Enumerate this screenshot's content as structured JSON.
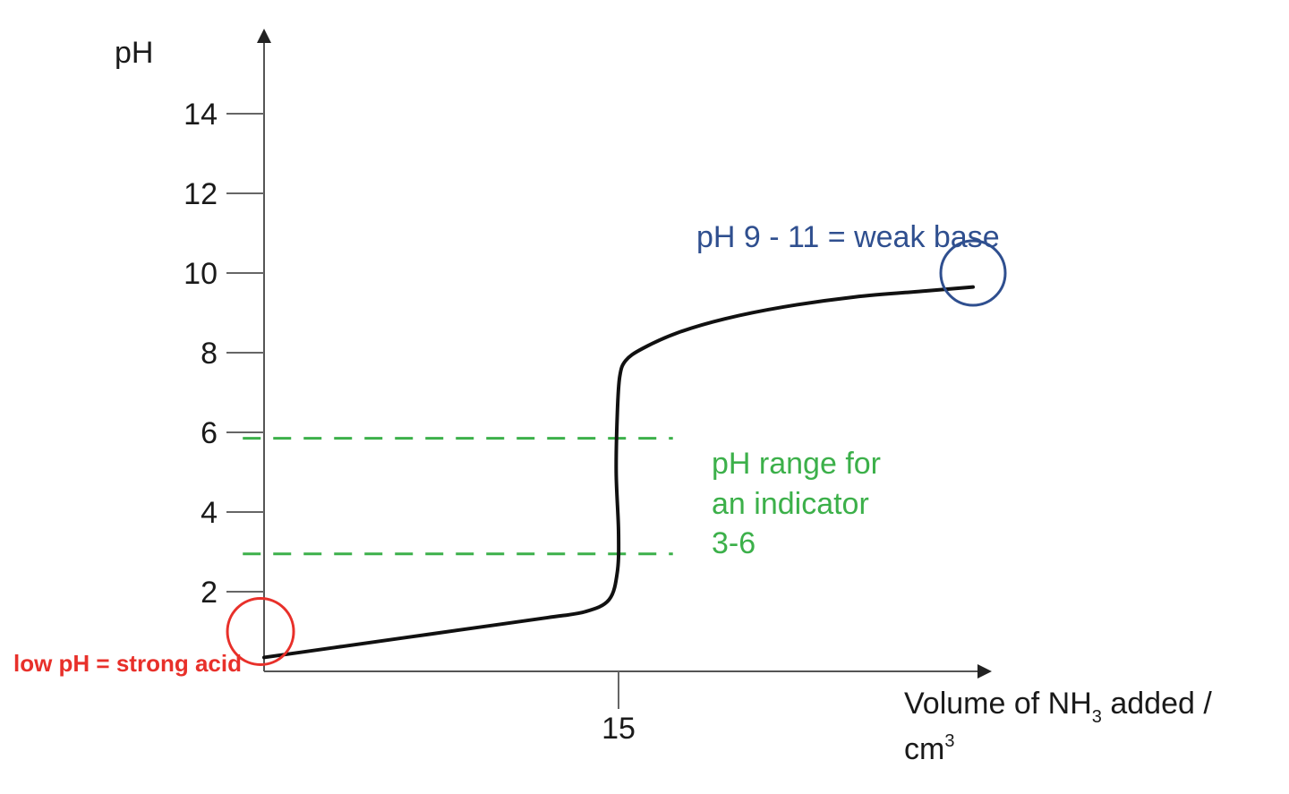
{
  "chart_data": {
    "type": "line",
    "title": "",
    "ylabel": "pH",
    "xlabel_parts": {
      "main": "Volume of NH",
      "sub": "3",
      "rest": " added /",
      "unit_main": "cm",
      "unit_sup": "3"
    },
    "y_ticks": [
      {
        "value": 2,
        "label": "2"
      },
      {
        "value": 4,
        "label": "4"
      },
      {
        "value": 6,
        "label": "6"
      },
      {
        "value": 8,
        "label": "8"
      },
      {
        "value": 10,
        "label": "10"
      },
      {
        "value": 12,
        "label": "12"
      },
      {
        "value": 14,
        "label": "14"
      }
    ],
    "x_ticks": [
      {
        "value": 15,
        "label": "15"
      }
    ],
    "xlim": [
      0,
      31
    ],
    "ylim": [
      0,
      15.2
    ],
    "grid": false,
    "curve": {
      "color": "#111111",
      "x": [
        0,
        3,
        6,
        9,
        12,
        13.6,
        14.6,
        14.95,
        15.0,
        14.9,
        14.95,
        15.05,
        15.3,
        16,
        17.5,
        19.5,
        22,
        25,
        28,
        30
      ],
      "y": [
        0.35,
        0.6,
        0.85,
        1.1,
        1.35,
        1.5,
        1.8,
        2.5,
        3.5,
        5.0,
        6.5,
        7.4,
        7.8,
        8.1,
        8.5,
        8.85,
        9.15,
        9.4,
        9.55,
        9.65
      ]
    },
    "indicator_band": {
      "color": "#3cb04a",
      "lower": 2.95,
      "upper": 5.85,
      "x_start": -0.9,
      "x_end": 17.3,
      "label_lines": [
        "pH range for",
        "an indicator",
        "3-6"
      ]
    },
    "annotations": {
      "weak_base": {
        "text": "pH 9 - 11 = weak base",
        "color": "#2f4f8f",
        "circle_x": 30,
        "circle_y": 10
      },
      "strong_acid": {
        "text": "low pH = strong acid",
        "color": "#e8302a",
        "circle_x": -0.15,
        "circle_y": 1.0
      }
    }
  }
}
